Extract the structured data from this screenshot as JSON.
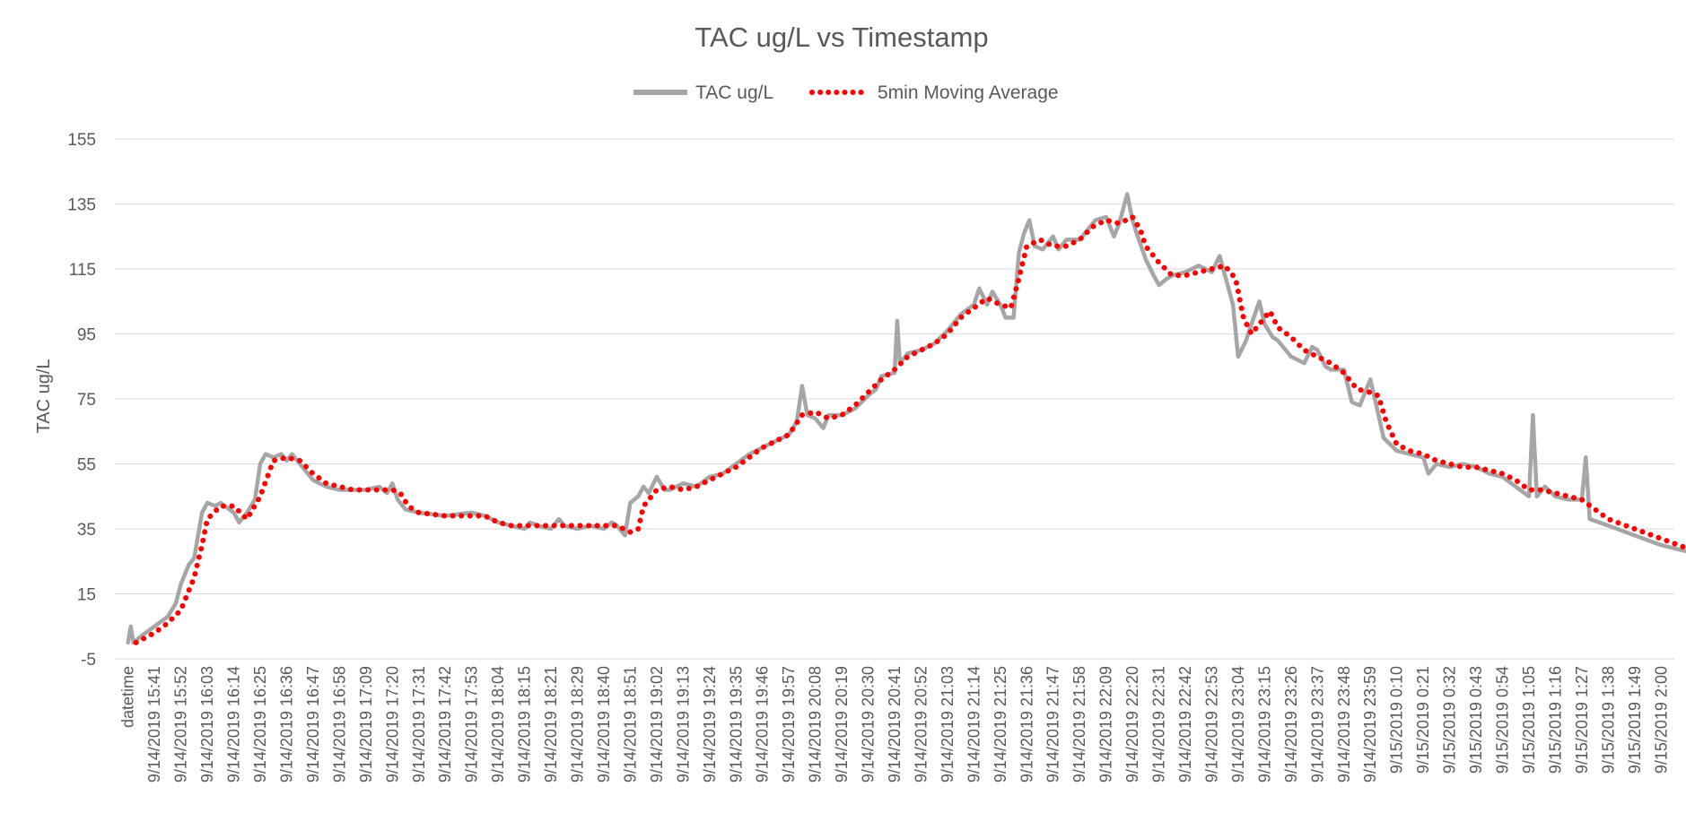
{
  "chart_data": {
    "type": "line",
    "title": "TAC ug/L vs Timestamp",
    "xlabel": "",
    "ylabel": "TAC ug/L",
    "ylim": [
      -5,
      155
    ],
    "yticks": [
      -5,
      15,
      35,
      55,
      75,
      95,
      115,
      135,
      155
    ],
    "grid": true,
    "legend_position": "top",
    "categories": [
      "datetime",
      "9/14/2019 15:41",
      "9/14/2019 15:52",
      "9/14/2019 16:03",
      "9/14/2019 16:14",
      "9/14/2019 16:25",
      "9/14/2019 16:36",
      "9/14/2019 16:47",
      "9/14/2019 16:58",
      "9/14/2019 17:09",
      "9/14/2019 17:20",
      "9/14/2019 17:31",
      "9/14/2019 17:42",
      "9/14/2019 17:53",
      "9/14/2019 18:04",
      "9/14/2019 18:15",
      "9/14/2019 18:21",
      "9/14/2019 18:29",
      "9/14/2019 18:40",
      "9/14/2019 18:51",
      "9/14/2019 19:02",
      "9/14/2019 19:13",
      "9/14/2019 19:24",
      "9/14/2019 19:35",
      "9/14/2019 19:46",
      "9/14/2019 19:57",
      "9/14/2019 20:08",
      "9/14/2019 20:19",
      "9/14/2019 20:30",
      "9/14/2019 20:41",
      "9/14/2019 20:52",
      "9/14/2019 21:03",
      "9/14/2019 21:14",
      "9/14/2019 21:25",
      "9/14/2019 21:36",
      "9/14/2019 21:47",
      "9/14/2019 21:58",
      "9/14/2019 22:09",
      "9/14/2019 22:20",
      "9/14/2019 22:31",
      "9/14/2019 22:42",
      "9/14/2019 22:53",
      "9/14/2019 23:04",
      "9/14/2019 23:15",
      "9/14/2019 23:26",
      "9/14/2019 23:37",
      "9/14/2019 23:48",
      "9/14/2019 23:59",
      "9/15/2019 0:10",
      "9/15/2019 0:21",
      "9/15/2019 0:32",
      "9/15/2019 0:43",
      "9/15/2019 0:54",
      "9/15/2019 1:05",
      "9/15/2019 1:16",
      "9/15/2019 1:27",
      "9/15/2019 1:38",
      "9/15/2019 1:49",
      "9/15/2019 2:00"
    ],
    "series": [
      {
        "name": "TAC ug/L",
        "color": "#a6a6a6",
        "style": "solid",
        "points": [
          [
            0,
            0
          ],
          [
            0.1,
            5
          ],
          [
            0.2,
            0
          ],
          [
            0.5,
            2
          ],
          [
            1,
            5
          ],
          [
            1.5,
            8
          ],
          [
            1.8,
            12
          ],
          [
            2,
            18
          ],
          [
            2.3,
            24
          ],
          [
            2.5,
            26
          ],
          [
            2.8,
            40
          ],
          [
            3,
            43
          ],
          [
            3.3,
            42
          ],
          [
            3.5,
            43
          ],
          [
            4,
            40
          ],
          [
            4.2,
            37
          ],
          [
            4.5,
            40
          ],
          [
            4.8,
            44
          ],
          [
            5,
            55
          ],
          [
            5.2,
            58
          ],
          [
            5.5,
            57
          ],
          [
            5.8,
            58
          ],
          [
            6,
            56
          ],
          [
            6.2,
            58
          ],
          [
            6.5,
            55
          ],
          [
            7,
            50
          ],
          [
            7.5,
            48
          ],
          [
            8,
            47
          ],
          [
            8.5,
            47
          ],
          [
            9,
            47
          ],
          [
            9.5,
            48
          ],
          [
            9.8,
            46
          ],
          [
            10,
            49
          ],
          [
            10.2,
            44
          ],
          [
            10.5,
            41
          ],
          [
            11,
            40
          ],
          [
            12,
            39
          ],
          [
            13,
            40
          ],
          [
            13.5,
            39
          ],
          [
            14,
            37
          ],
          [
            14.5,
            36
          ],
          [
            15,
            35
          ],
          [
            15.2,
            37
          ],
          [
            15.5,
            36
          ],
          [
            16,
            35
          ],
          [
            16.3,
            38
          ],
          [
            16.5,
            36
          ],
          [
            17,
            35
          ],
          [
            17.5,
            36
          ],
          [
            18,
            35
          ],
          [
            18.3,
            37
          ],
          [
            18.5,
            36
          ],
          [
            18.8,
            33
          ],
          [
            19,
            43
          ],
          [
            19.3,
            45
          ],
          [
            19.5,
            48
          ],
          [
            19.7,
            46
          ],
          [
            20,
            51
          ],
          [
            20.3,
            47
          ],
          [
            20.5,
            47
          ],
          [
            21,
            49
          ],
          [
            21.5,
            48
          ],
          [
            22,
            51
          ],
          [
            22.5,
            52
          ],
          [
            23,
            55
          ],
          [
            23.5,
            58
          ],
          [
            24,
            60
          ],
          [
            24.5,
            62
          ],
          [
            25,
            64
          ],
          [
            25.3,
            68
          ],
          [
            25.5,
            79
          ],
          [
            25.7,
            70
          ],
          [
            26,
            69
          ],
          [
            26.3,
            66
          ],
          [
            26.5,
            70
          ],
          [
            27,
            70
          ],
          [
            27.5,
            72
          ],
          [
            28,
            76
          ],
          [
            28.3,
            78
          ],
          [
            28.5,
            82
          ],
          [
            29,
            83
          ],
          [
            29.1,
            99
          ],
          [
            29.2,
            86
          ],
          [
            29.5,
            89
          ],
          [
            30,
            90
          ],
          [
            30.5,
            92
          ],
          [
            31,
            96
          ],
          [
            31.5,
            101
          ],
          [
            32,
            104
          ],
          [
            32.2,
            109
          ],
          [
            32.5,
            104
          ],
          [
            32.7,
            108
          ],
          [
            33,
            104
          ],
          [
            33.2,
            100
          ],
          [
            33.5,
            100
          ],
          [
            33.7,
            120
          ],
          [
            33.9,
            126
          ],
          [
            34.1,
            130
          ],
          [
            34.3,
            122
          ],
          [
            34.6,
            121
          ],
          [
            35,
            125
          ],
          [
            35.2,
            121
          ],
          [
            35.5,
            124
          ],
          [
            36,
            124
          ],
          [
            36.3,
            127
          ],
          [
            36.6,
            130
          ],
          [
            37,
            131
          ],
          [
            37.3,
            125
          ],
          [
            37.5,
            129
          ],
          [
            37.8,
            138
          ],
          [
            38,
            130
          ],
          [
            38.2,
            125
          ],
          [
            38.5,
            118
          ],
          [
            38.8,
            113
          ],
          [
            39,
            110
          ],
          [
            39.3,
            112
          ],
          [
            39.5,
            113
          ],
          [
            40,
            114
          ],
          [
            40.5,
            116
          ],
          [
            41,
            114
          ],
          [
            41.3,
            119
          ],
          [
            41.5,
            113
          ],
          [
            41.8,
            104
          ],
          [
            42,
            88
          ],
          [
            42.3,
            93
          ],
          [
            42.5,
            98
          ],
          [
            42.8,
            105
          ],
          [
            43,
            98
          ],
          [
            43.3,
            94
          ],
          [
            43.5,
            93
          ],
          [
            44,
            88
          ],
          [
            44.5,
            86
          ],
          [
            44.8,
            91
          ],
          [
            45,
            90
          ],
          [
            45.3,
            85
          ],
          [
            45.5,
            84
          ],
          [
            46,
            84
          ],
          [
            46.3,
            74
          ],
          [
            46.6,
            73
          ],
          [
            47,
            81
          ],
          [
            47.2,
            74
          ],
          [
            47.5,
            63
          ],
          [
            48,
            59
          ],
          [
            48.5,
            58
          ],
          [
            49,
            57
          ],
          [
            49.2,
            52
          ],
          [
            49.5,
            55
          ],
          [
            50,
            54
          ],
          [
            50.5,
            55
          ],
          [
            51,
            54
          ],
          [
            51.5,
            52
          ],
          [
            52,
            51
          ],
          [
            52.5,
            48
          ],
          [
            53,
            45
          ],
          [
            53.15,
            70
          ],
          [
            53.3,
            45
          ],
          [
            53.6,
            48
          ],
          [
            54,
            45
          ],
          [
            54.5,
            44
          ],
          [
            55,
            44
          ],
          [
            55.15,
            57
          ],
          [
            55.3,
            38
          ],
          [
            56,
            36
          ],
          [
            57,
            33
          ],
          [
            58,
            30
          ],
          [
            59,
            28
          ],
          [
            60,
            28
          ],
          [
            61,
            27
          ],
          [
            61.3,
            27
          ]
        ]
      },
      {
        "name": "5min Moving Average",
        "color": "#ff0000",
        "style": "dotted",
        "points": [
          [
            0.3,
            0
          ],
          [
            1,
            3
          ],
          [
            1.5,
            6
          ],
          [
            2,
            10
          ],
          [
            2.5,
            20
          ],
          [
            2.8,
            30
          ],
          [
            3,
            38
          ],
          [
            3.5,
            42
          ],
          [
            4,
            42
          ],
          [
            4.5,
            38
          ],
          [
            5,
            45
          ],
          [
            5.5,
            56
          ],
          [
            6,
            57
          ],
          [
            6.5,
            56
          ],
          [
            7,
            52
          ],
          [
            7.5,
            49
          ],
          [
            8,
            48
          ],
          [
            8.5,
            47
          ],
          [
            9,
            47
          ],
          [
            9.5,
            47
          ],
          [
            10,
            47
          ],
          [
            10.3,
            46
          ],
          [
            10.6,
            42
          ],
          [
            11,
            40
          ],
          [
            12,
            39
          ],
          [
            13,
            39
          ],
          [
            13.5,
            39
          ],
          [
            14,
            37
          ],
          [
            14.5,
            36
          ],
          [
            15,
            36
          ],
          [
            15.5,
            36
          ],
          [
            16,
            36
          ],
          [
            16.5,
            36
          ],
          [
            17,
            36
          ],
          [
            17.5,
            36
          ],
          [
            18,
            36
          ],
          [
            18.5,
            36
          ],
          [
            19,
            34
          ],
          [
            19.3,
            35
          ],
          [
            19.5,
            42
          ],
          [
            20,
            47
          ],
          [
            20.5,
            48
          ],
          [
            21,
            47
          ],
          [
            21.5,
            48
          ],
          [
            22,
            50
          ],
          [
            22.5,
            52
          ],
          [
            23,
            54
          ],
          [
            23.5,
            57
          ],
          [
            24,
            60
          ],
          [
            24.5,
            62
          ],
          [
            25,
            64
          ],
          [
            25.5,
            70
          ],
          [
            26,
            71
          ],
          [
            26.5,
            69
          ],
          [
            27,
            70
          ],
          [
            27.5,
            73
          ],
          [
            28,
            77
          ],
          [
            28.5,
            81
          ],
          [
            29,
            84
          ],
          [
            29.5,
            88
          ],
          [
            30,
            90
          ],
          [
            30.5,
            92
          ],
          [
            31,
            95
          ],
          [
            31.5,
            100
          ],
          [
            32,
            103
          ],
          [
            32.5,
            106
          ],
          [
            33,
            104
          ],
          [
            33.4,
            103
          ],
          [
            33.7,
            112
          ],
          [
            34,
            122
          ],
          [
            34.5,
            124
          ],
          [
            35,
            122
          ],
          [
            35.5,
            122
          ],
          [
            36,
            124
          ],
          [
            36.5,
            128
          ],
          [
            37,
            130
          ],
          [
            37.5,
            129
          ],
          [
            38,
            131
          ],
          [
            38.3,
            127
          ],
          [
            38.5,
            122
          ],
          [
            39,
            117
          ],
          [
            39.5,
            113
          ],
          [
            40,
            113
          ],
          [
            40.5,
            114
          ],
          [
            41,
            115
          ],
          [
            41.5,
            116
          ],
          [
            41.9,
            112
          ],
          [
            42.2,
            100
          ],
          [
            42.5,
            95
          ],
          [
            43,
            100
          ],
          [
            43.2,
            102
          ],
          [
            43.5,
            97
          ],
          [
            44,
            94
          ],
          [
            44.5,
            90
          ],
          [
            45,
            88
          ],
          [
            45.5,
            86
          ],
          [
            46,
            83
          ],
          [
            46.5,
            78
          ],
          [
            47,
            77
          ],
          [
            47.3,
            76
          ],
          [
            47.6,
            68
          ],
          [
            48,
            61
          ],
          [
            48.5,
            59
          ],
          [
            49,
            58
          ],
          [
            49.5,
            56
          ],
          [
            50,
            55
          ],
          [
            50.5,
            54
          ],
          [
            51,
            54
          ],
          [
            51.5,
            53
          ],
          [
            52,
            52
          ],
          [
            52.5,
            50
          ],
          [
            53,
            47
          ],
          [
            53.5,
            47
          ],
          [
            54,
            46
          ],
          [
            54.5,
            45
          ],
          [
            55,
            44
          ],
          [
            55.5,
            41
          ],
          [
            56,
            38
          ],
          [
            57,
            35
          ],
          [
            58,
            32
          ],
          [
            59,
            29
          ],
          [
            60,
            28
          ],
          [
            61,
            28
          ]
        ]
      }
    ]
  }
}
